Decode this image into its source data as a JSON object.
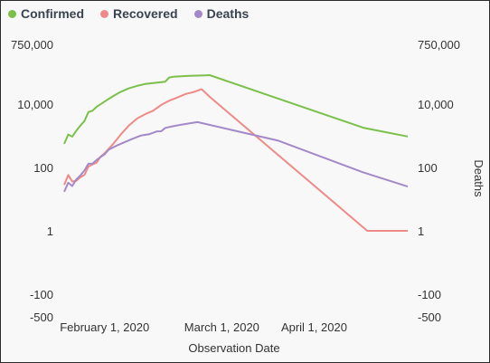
{
  "legend": {
    "items": [
      {
        "label": "Confirmed",
        "color": "#7bc04b"
      },
      {
        "label": "Recovered",
        "color": "#ee8a88"
      },
      {
        "label": "Deaths",
        "color": "#a389c8"
      }
    ]
  },
  "chart_data": {
    "type": "line",
    "xlabel": "Observation Date",
    "ylabel_right": "Deaths",
    "y_scale": "symlog",
    "y_ticks": [
      750000,
      10000,
      100,
      1,
      -100,
      -500
    ],
    "y_tick_labels": [
      "750,000",
      "10,000",
      "100",
      "1",
      "-100",
      "-500"
    ],
    "x_ticks": [
      "2020-02-01",
      "2020-03-01",
      "2020-04-01"
    ],
    "x_tick_labels": [
      "February 1, 2020",
      "March 1, 2020",
      "April 1, 2020"
    ],
    "x_range": [
      "2020-01-22",
      "2020-04-16"
    ],
    "grid": false,
    "legend_position": "top-left",
    "series": [
      {
        "name": "Confirmed",
        "color": "#7bc04b",
        "points": [
          [
            "2020-01-22",
            555
          ],
          [
            "2020-01-23",
            1100
          ],
          [
            "2020-01-24",
            940
          ],
          [
            "2020-01-25",
            1450
          ],
          [
            "2020-01-26",
            2100
          ],
          [
            "2020-01-27",
            2900
          ],
          [
            "2020-01-28",
            5600
          ],
          [
            "2020-01-29",
            6200
          ],
          [
            "2020-01-30",
            8200
          ],
          [
            "2020-01-31",
            9900
          ],
          [
            "2020-02-01",
            12000
          ],
          [
            "2020-02-03",
            17500
          ],
          [
            "2020-02-05",
            24500
          ],
          [
            "2020-02-07",
            31500
          ],
          [
            "2020-02-09",
            37600
          ],
          [
            "2020-02-11",
            43100
          ],
          [
            "2020-02-13",
            46000
          ],
          [
            "2020-02-15",
            49000
          ],
          [
            "2020-02-16",
            51200
          ],
          [
            "2020-02-17",
            69000
          ],
          [
            "2020-02-18",
            73000
          ],
          [
            "2020-02-20",
            76000
          ],
          [
            "2020-02-22",
            77800
          ],
          [
            "2020-02-24",
            79300
          ],
          [
            "2020-02-26",
            81000
          ],
          [
            "2020-02-27",
            82000
          ],
          [
            "2020-04-05",
            1800
          ],
          [
            "2020-04-16",
            950
          ]
        ]
      },
      {
        "name": "Recovered",
        "color": "#ee8a88",
        "points": [
          [
            "2020-01-22",
            28
          ],
          [
            "2020-01-23",
            58
          ],
          [
            "2020-01-24",
            36
          ],
          [
            "2020-01-25",
            38
          ],
          [
            "2020-01-26",
            49
          ],
          [
            "2020-01-27",
            58
          ],
          [
            "2020-01-28",
            107
          ],
          [
            "2020-01-29",
            125
          ],
          [
            "2020-01-30",
            141
          ],
          [
            "2020-01-31",
            219
          ],
          [
            "2020-02-01",
            281
          ],
          [
            "2020-02-03",
            530
          ],
          [
            "2020-02-05",
            1100
          ],
          [
            "2020-02-07",
            2100
          ],
          [
            "2020-02-09",
            3500
          ],
          [
            "2020-02-11",
            4800
          ],
          [
            "2020-02-13",
            6200
          ],
          [
            "2020-02-15",
            9400
          ],
          [
            "2020-02-17",
            12800
          ],
          [
            "2020-02-19",
            16200
          ],
          [
            "2020-02-21",
            20800
          ],
          [
            "2020-02-23",
            24000
          ],
          [
            "2020-02-25",
            29700
          ],
          [
            "2020-02-27",
            17000
          ],
          [
            "2020-04-06",
            1
          ],
          [
            "2020-04-16",
            1
          ]
        ]
      },
      {
        "name": "Deaths",
        "color": "#a389c8",
        "points": [
          [
            "2020-01-22",
            17
          ],
          [
            "2020-01-23",
            33
          ],
          [
            "2020-01-24",
            26
          ],
          [
            "2020-01-25",
            42
          ],
          [
            "2020-01-26",
            56
          ],
          [
            "2020-01-27",
            80
          ],
          [
            "2020-01-28",
            131
          ],
          [
            "2020-01-29",
            133
          ],
          [
            "2020-01-30",
            171
          ],
          [
            "2020-01-31",
            213
          ],
          [
            "2020-02-01",
            259
          ],
          [
            "2020-02-02",
            362
          ],
          [
            "2020-02-04",
            490
          ],
          [
            "2020-02-06",
            636
          ],
          [
            "2020-02-08",
            812
          ],
          [
            "2020-02-10",
            1018
          ],
          [
            "2020-02-12",
            1115
          ],
          [
            "2020-02-14",
            1383
          ],
          [
            "2020-02-15",
            1385
          ],
          [
            "2020-02-16",
            1770
          ],
          [
            "2020-02-18",
            2004
          ],
          [
            "2020-02-20",
            2247
          ],
          [
            "2020-02-22",
            2466
          ],
          [
            "2020-02-24",
            2706
          ],
          [
            "2020-03-15",
            700
          ],
          [
            "2020-04-05",
            70
          ],
          [
            "2020-04-16",
            25
          ]
        ]
      }
    ]
  }
}
